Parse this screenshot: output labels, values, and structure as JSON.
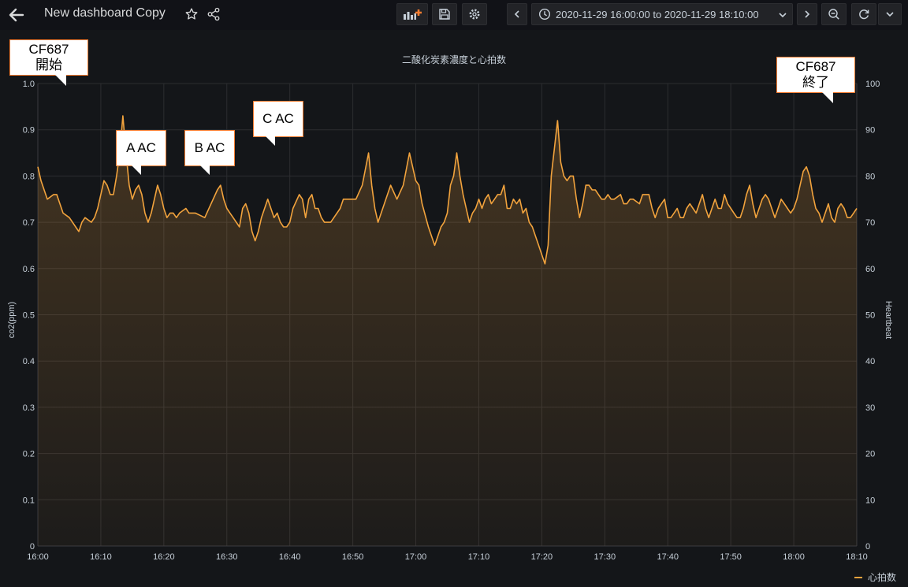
{
  "topbar": {
    "title": "New dashboard Copy",
    "time_range": "2020-11-29 16:00:00 to 2020-11-29 18:10:00",
    "icons": {
      "back": "arrow-left-icon",
      "star": "star-icon",
      "share": "share-icon",
      "add_panel": "add-panel-icon",
      "save": "save-icon",
      "settings": "gear-icon",
      "clock": "clock-icon",
      "prev": "chevron-left-icon",
      "next": "chevron-right-icon",
      "zoom_out": "zoom-out-icon",
      "refresh": "refresh-icon",
      "refresh_dropdown": "chevron-down-icon"
    }
  },
  "colors": {
    "background": "#161719",
    "series": "#f2a33d",
    "add_icon": "#f47c30",
    "callout_border": "#f47c30",
    "grid": "#2c2d30"
  },
  "annotations": {
    "start": [
      "CF687",
      "開始"
    ],
    "end": [
      "CF687",
      "終了"
    ],
    "a": "A AC",
    "b": "B AC",
    "c": "C AC"
  },
  "chart_data": {
    "type": "area",
    "title": "二酸化炭素濃度と心拍数",
    "y_left": {
      "label": "co2(ppm)",
      "range": [
        0,
        1.0
      ],
      "ticks": [
        "0",
        "0.1",
        "0.2",
        "0.3",
        "0.4",
        "0.5",
        "0.6",
        "0.7",
        "0.8",
        "0.9",
        "1.0"
      ]
    },
    "y_right": {
      "label": "Heartbeat",
      "range": [
        0,
        100
      ],
      "ticks": [
        "0",
        "10",
        "20",
        "30",
        "40",
        "50",
        "60",
        "70",
        "80",
        "90",
        "100"
      ]
    },
    "x_range_minutes": [
      0,
      130
    ],
    "x_ticks": [
      "16:00",
      "16:10",
      "16:20",
      "16:30",
      "16:40",
      "16:50",
      "17:00",
      "17:10",
      "17:20",
      "17:30",
      "17:40",
      "17:50",
      "18:00",
      "18:10"
    ],
    "grid": true,
    "legend_position": "bottom-right",
    "series": [
      {
        "name": "心拍数",
        "axis": "right",
        "points": [
          [
            0.0,
            82
          ],
          [
            0.5,
            79
          ],
          [
            1.5,
            75
          ],
          [
            2.5,
            76
          ],
          [
            3.0,
            76
          ],
          [
            3.5,
            74
          ],
          [
            4.0,
            72
          ],
          [
            5.0,
            71
          ],
          [
            5.5,
            70
          ],
          [
            6.0,
            69
          ],
          [
            6.5,
            68
          ],
          [
            7.0,
            70
          ],
          [
            7.5,
            71
          ],
          [
            8.5,
            70
          ],
          [
            9.0,
            71
          ],
          [
            9.5,
            73
          ],
          [
            10.0,
            76
          ],
          [
            10.5,
            79
          ],
          [
            11.0,
            78
          ],
          [
            11.5,
            76
          ],
          [
            12.0,
            76
          ],
          [
            12.5,
            80
          ],
          [
            13.0,
            85
          ],
          [
            13.5,
            93
          ],
          [
            14.0,
            85
          ],
          [
            14.5,
            78
          ],
          [
            15.0,
            75
          ],
          [
            15.5,
            77
          ],
          [
            16.0,
            78
          ],
          [
            16.5,
            76
          ],
          [
            17.0,
            72
          ],
          [
            17.5,
            70
          ],
          [
            18.0,
            72
          ],
          [
            19.0,
            78
          ],
          [
            19.5,
            76
          ],
          [
            20.0,
            73
          ],
          [
            20.5,
            71
          ],
          [
            21.0,
            72
          ],
          [
            21.5,
            72
          ],
          [
            22.0,
            71
          ],
          [
            22.5,
            72
          ],
          [
            23.5,
            73
          ],
          [
            24.0,
            72
          ],
          [
            25.0,
            72
          ],
          [
            26.5,
            71
          ],
          [
            27.5,
            74
          ],
          [
            28.5,
            77
          ],
          [
            29.0,
            78
          ],
          [
            29.5,
            75
          ],
          [
            30.0,
            73
          ],
          [
            30.5,
            72
          ],
          [
            31.0,
            71
          ],
          [
            32.0,
            69
          ],
          [
            32.5,
            73
          ],
          [
            33.0,
            74
          ],
          [
            33.5,
            72
          ],
          [
            34.0,
            68
          ],
          [
            34.5,
            66
          ],
          [
            35.0,
            68
          ],
          [
            35.5,
            71
          ],
          [
            36.5,
            75
          ],
          [
            37.0,
            73
          ],
          [
            37.5,
            71
          ],
          [
            38.0,
            72
          ],
          [
            38.5,
            70
          ],
          [
            39.0,
            69
          ],
          [
            39.5,
            69
          ],
          [
            40.0,
            70
          ],
          [
            40.5,
            73
          ],
          [
            41.5,
            76
          ],
          [
            42.0,
            75
          ],
          [
            42.5,
            71
          ],
          [
            43.0,
            75
          ],
          [
            43.5,
            76
          ],
          [
            44.0,
            73
          ],
          [
            44.5,
            73
          ],
          [
            45.0,
            71
          ],
          [
            45.5,
            70
          ],
          [
            46.5,
            70
          ],
          [
            48.0,
            73
          ],
          [
            48.5,
            75
          ],
          [
            49.5,
            75
          ],
          [
            50.5,
            75
          ],
          [
            51.5,
            78
          ],
          [
            52.5,
            85
          ],
          [
            53.0,
            78
          ],
          [
            53.5,
            73
          ],
          [
            54.0,
            70
          ],
          [
            55.0,
            74
          ],
          [
            56.0,
            78
          ],
          [
            57.0,
            75
          ],
          [
            58.0,
            78
          ],
          [
            59.0,
            85
          ],
          [
            60.0,
            79
          ],
          [
            60.5,
            78
          ],
          [
            61.0,
            74
          ],
          [
            62.0,
            69
          ],
          [
            62.5,
            67
          ],
          [
            63.0,
            65
          ],
          [
            63.5,
            67
          ],
          [
            64.0,
            69
          ],
          [
            64.5,
            70
          ],
          [
            65.0,
            72
          ],
          [
            65.5,
            78
          ],
          [
            66.0,
            80
          ],
          [
            66.5,
            85
          ],
          [
            67.0,
            80
          ],
          [
            67.5,
            76
          ],
          [
            68.0,
            73
          ],
          [
            68.5,
            70
          ],
          [
            69.0,
            72
          ],
          [
            69.5,
            73
          ],
          [
            70.0,
            75
          ],
          [
            70.5,
            73
          ],
          [
            71.0,
            75
          ],
          [
            71.5,
            76
          ],
          [
            72.0,
            74
          ],
          [
            72.5,
            75
          ],
          [
            73.0,
            76
          ],
          [
            73.5,
            76
          ],
          [
            74.0,
            78
          ],
          [
            74.5,
            73
          ],
          [
            75.0,
            73
          ],
          [
            75.5,
            75
          ],
          [
            76.0,
            74
          ],
          [
            76.5,
            75
          ],
          [
            77.0,
            72
          ],
          [
            77.5,
            73
          ],
          [
            78.0,
            70
          ],
          [
            78.5,
            69
          ],
          [
            79.0,
            67
          ],
          [
            79.5,
            65
          ],
          [
            80.0,
            63
          ],
          [
            80.5,
            61
          ],
          [
            81.0,
            65
          ],
          [
            81.5,
            80
          ],
          [
            82.0,
            86
          ],
          [
            82.5,
            92
          ],
          [
            83.0,
            83
          ],
          [
            83.5,
            80
          ],
          [
            84.0,
            79
          ],
          [
            84.5,
            80
          ],
          [
            85.0,
            80
          ],
          [
            85.5,
            75
          ],
          [
            86.0,
            71
          ],
          [
            86.5,
            74
          ],
          [
            87.0,
            78
          ],
          [
            87.5,
            78
          ],
          [
            88.0,
            77
          ],
          [
            88.5,
            77
          ],
          [
            89.0,
            76
          ],
          [
            89.5,
            75
          ],
          [
            90.0,
            75
          ],
          [
            90.5,
            76
          ],
          [
            91.0,
            75
          ],
          [
            91.5,
            75
          ],
          [
            92.5,
            76
          ],
          [
            93.0,
            74
          ],
          [
            93.5,
            74
          ],
          [
            94.0,
            75
          ],
          [
            94.5,
            75
          ],
          [
            95.5,
            74
          ],
          [
            96.0,
            76
          ],
          [
            97.0,
            76
          ],
          [
            97.5,
            73
          ],
          [
            98.0,
            71
          ],
          [
            98.5,
            73
          ],
          [
            99.0,
            74
          ],
          [
            99.5,
            75
          ],
          [
            100.0,
            71
          ],
          [
            100.5,
            71
          ],
          [
            101.0,
            72
          ],
          [
            101.5,
            73
          ],
          [
            102.0,
            71
          ],
          [
            102.5,
            71
          ],
          [
            103.0,
            73
          ],
          [
            103.5,
            74
          ],
          [
            104.0,
            73
          ],
          [
            104.5,
            72
          ],
          [
            105.0,
            74
          ],
          [
            105.5,
            76
          ],
          [
            106.0,
            73
          ],
          [
            106.5,
            71
          ],
          [
            107.0,
            73
          ],
          [
            107.5,
            75
          ],
          [
            108.0,
            73
          ],
          [
            108.5,
            73
          ],
          [
            109.0,
            76
          ],
          [
            109.5,
            74
          ],
          [
            110.0,
            73
          ],
          [
            110.5,
            72
          ],
          [
            111.0,
            71
          ],
          [
            111.5,
            71
          ],
          [
            112.0,
            73
          ],
          [
            112.5,
            76
          ],
          [
            113.0,
            78
          ],
          [
            113.5,
            74
          ],
          [
            114.0,
            71
          ],
          [
            114.5,
            73
          ],
          [
            115.0,
            75
          ],
          [
            115.5,
            76
          ],
          [
            116.0,
            75
          ],
          [
            116.5,
            73
          ],
          [
            117.0,
            71
          ],
          [
            117.5,
            73
          ],
          [
            118.0,
            75
          ],
          [
            118.5,
            74
          ],
          [
            119.0,
            73
          ],
          [
            119.5,
            72
          ],
          [
            120.0,
            73
          ],
          [
            120.5,
            75
          ],
          [
            121.0,
            78
          ],
          [
            121.5,
            81
          ],
          [
            122.0,
            82
          ],
          [
            122.5,
            80
          ],
          [
            123.0,
            76
          ],
          [
            123.5,
            73
          ],
          [
            124.0,
            72
          ],
          [
            124.5,
            70
          ],
          [
            125.0,
            72
          ],
          [
            125.5,
            74
          ],
          [
            126.0,
            71
          ],
          [
            126.5,
            70
          ],
          [
            127.0,
            73
          ],
          [
            127.5,
            74
          ],
          [
            128.0,
            73
          ],
          [
            128.5,
            71
          ],
          [
            129.0,
            71
          ],
          [
            129.5,
            72
          ],
          [
            130.0,
            73
          ]
        ]
      }
    ]
  }
}
